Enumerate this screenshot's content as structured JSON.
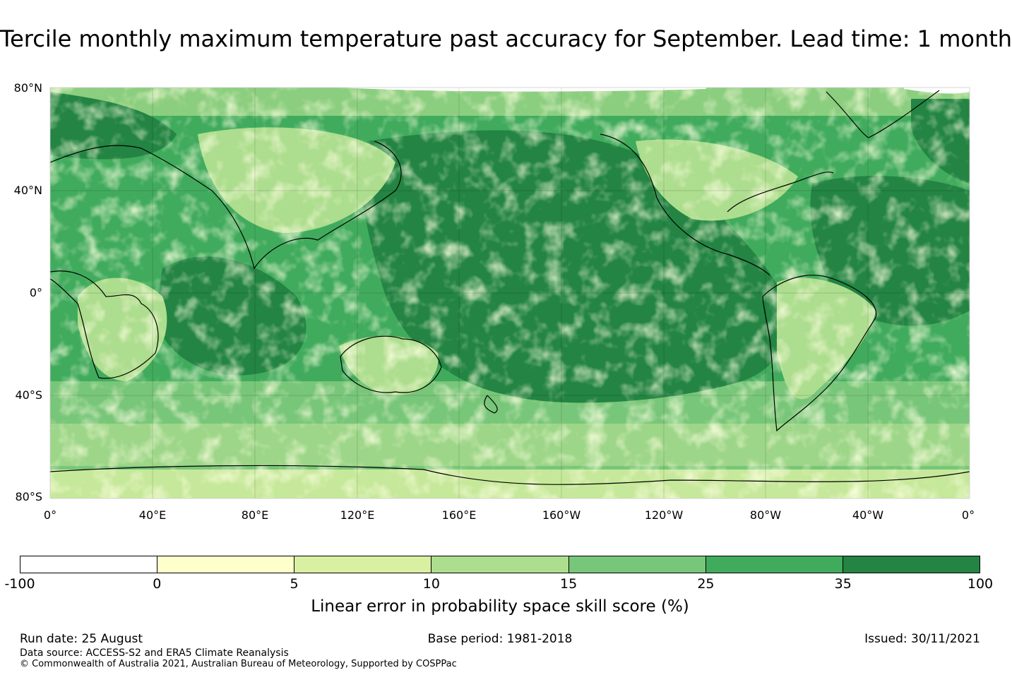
{
  "title": "Tercile monthly maximum temperature past accuracy for September. Lead time: 1 month",
  "map": {
    "lat_ticks": [
      "80°N",
      "40°N",
      "0°",
      "40°S",
      "80°S"
    ],
    "lon_ticks": [
      "0°",
      "40°E",
      "80°E",
      "120°E",
      "160°E",
      "160°W",
      "120°W",
      "80°W",
      "40°W",
      "0°"
    ]
  },
  "colorbar": {
    "ticks": [
      "-100",
      "0",
      "5",
      "10",
      "15",
      "25",
      "35",
      "100"
    ],
    "colors": [
      "#ffffff",
      "#ffffcc",
      "#d9f0a3",
      "#addd8e",
      "#78c679",
      "#41ab5d",
      "#238443"
    ],
    "label": "Linear error in probability space skill score (%)"
  },
  "footer": {
    "run_date": "Run date: 25 August",
    "base_period": "Base period: 1981-2018",
    "issued": "Issued: 30/11/2021",
    "data_source": "Data source: ACCESS-S2 and ERA5 Climate Reanalysis",
    "copyright": "© Commonwealth of Australia 2021, Australian Bureau of Meteorology, Supported by COSPPac"
  }
}
